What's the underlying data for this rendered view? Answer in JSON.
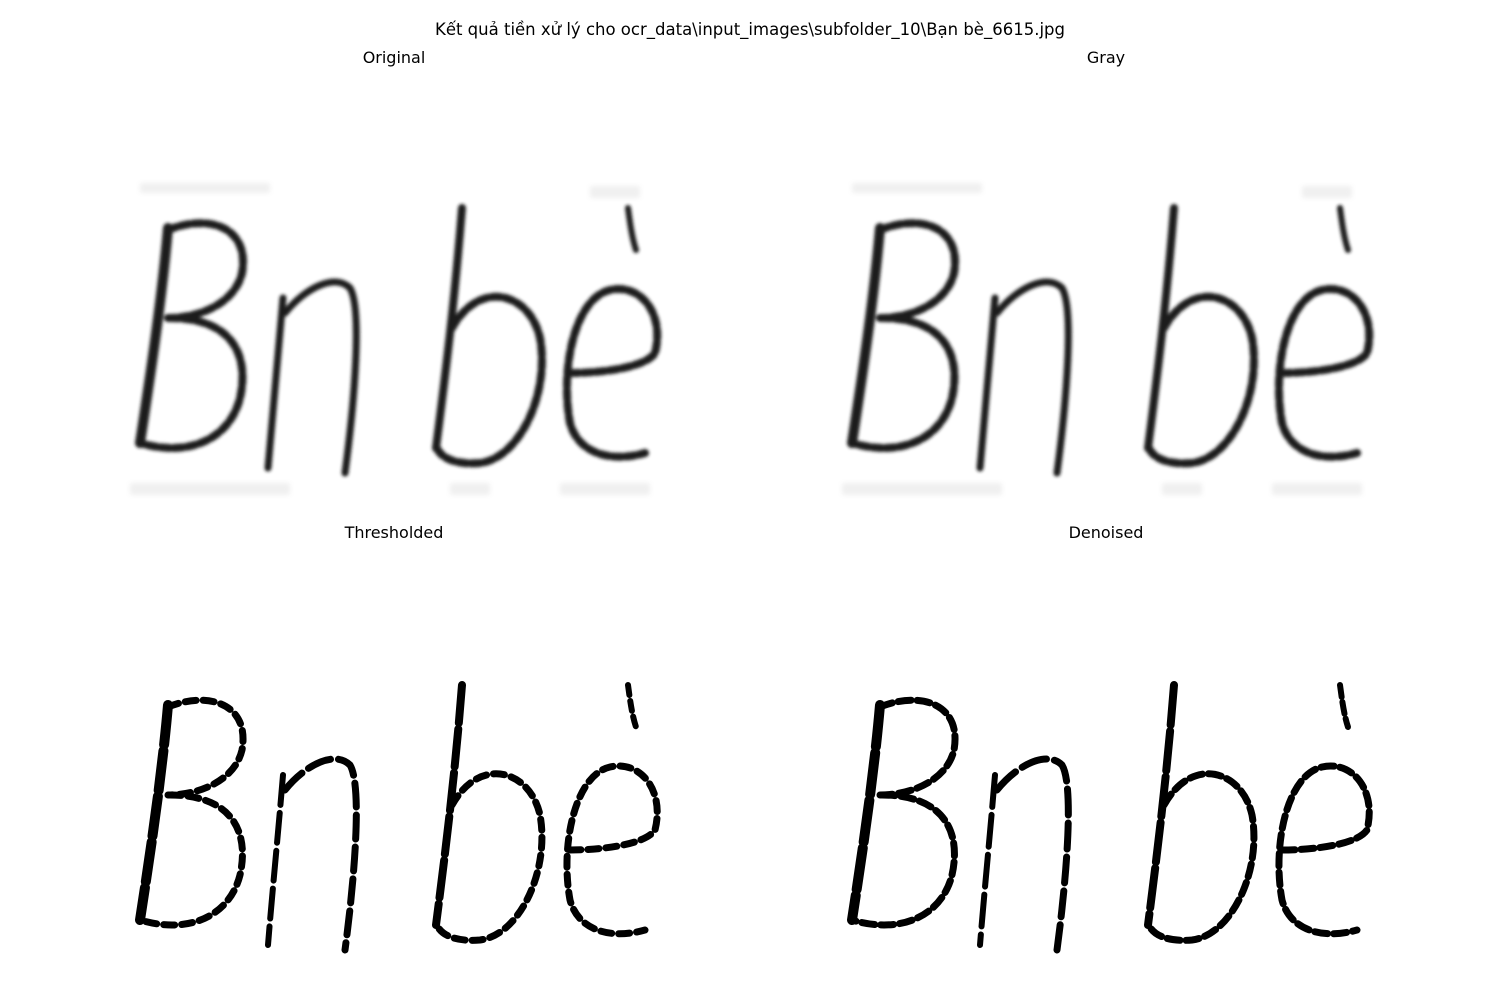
{
  "figure": {
    "title": "Kết quả tiền xử lý cho ocr_data\\input_images\\subfolder_10\\Bạn bè_6615.jpg"
  },
  "panels": [
    {
      "title": "Original"
    },
    {
      "title": "Gray"
    },
    {
      "title": "Thresholded"
    },
    {
      "title": "Denoised"
    }
  ],
  "image": {
    "handwritten_text": "Bn bè",
    "ink_color": "#111111",
    "background_color": "#ffffff"
  }
}
